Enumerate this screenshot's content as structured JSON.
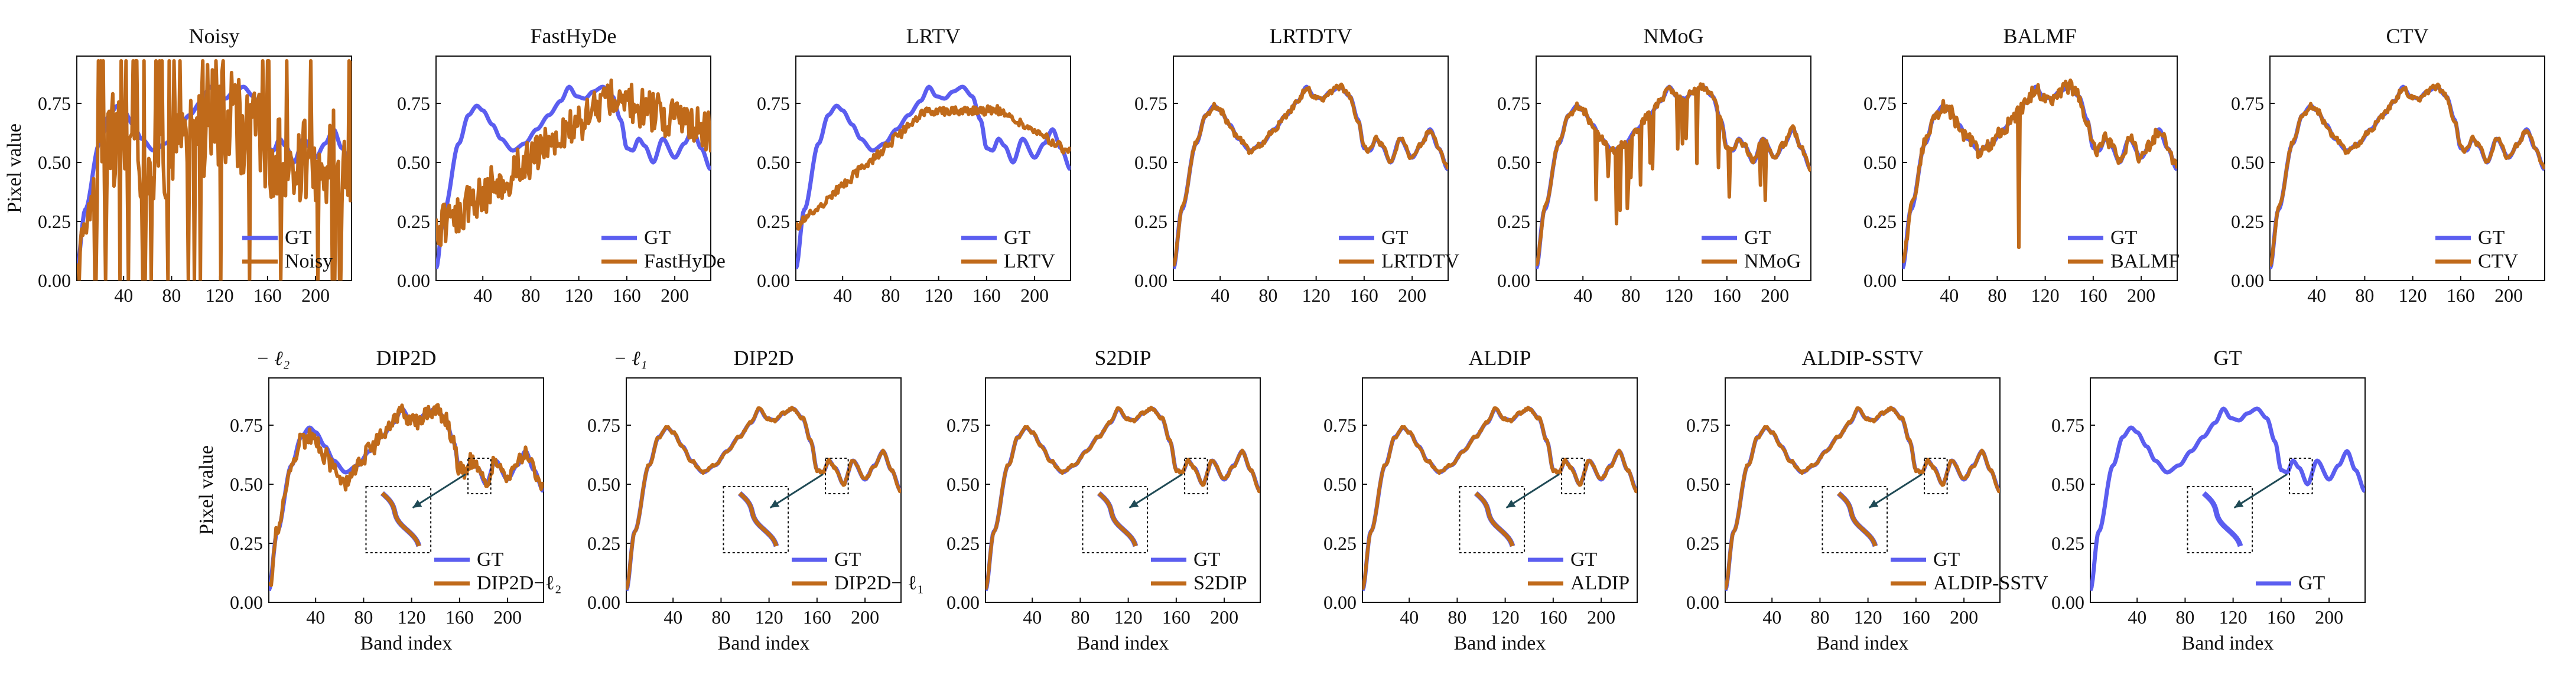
{
  "colors": {
    "gt": "#5b5ef0",
    "method": "#c06a1a",
    "arrow": "#1f4a55"
  },
  "chart_data": [
    {
      "type": "line",
      "title": "Noisy",
      "ylabel": "Pixel value",
      "xlabel": "",
      "noise": "heavy",
      "zoom": false,
      "legend": [
        "GT",
        "Noisy"
      ],
      "ylim": [
        0,
        0.95
      ],
      "xlim": [
        1,
        230
      ],
      "xticks": [
        "40",
        "80",
        "120",
        "160",
        "200"
      ],
      "yticks": [
        "0.00",
        "0.25",
        "0.50",
        "0.75"
      ]
    },
    {
      "type": "line",
      "title": "FastHyDe",
      "ylabel": "",
      "xlabel": "",
      "noise": "fasthyde",
      "zoom": false,
      "legend": [
        "GT",
        "FastHyDe"
      ],
      "ylim": [
        0,
        0.95
      ],
      "xlim": [
        1,
        230
      ],
      "xticks": [
        "40",
        "80",
        "120",
        "160",
        "200"
      ],
      "yticks": [
        "0.00",
        "0.25",
        "0.50",
        "0.75"
      ]
    },
    {
      "type": "line",
      "title": "LRTV",
      "ylabel": "",
      "xlabel": "",
      "noise": "lrtv",
      "zoom": false,
      "legend": [
        "GT",
        "LRTV"
      ],
      "ylim": [
        0,
        0.95
      ],
      "xlim": [
        1,
        230
      ],
      "xticks": [
        "40",
        "80",
        "120",
        "160",
        "200"
      ],
      "yticks": [
        "0.00",
        "0.25",
        "0.50",
        "0.75"
      ]
    },
    {
      "type": "line",
      "title": "LRTDTV",
      "ylabel": "",
      "xlabel": "",
      "noise": "light",
      "zoom": false,
      "legend": [
        "GT",
        "LRTDTV"
      ],
      "ylim": [
        0,
        0.95
      ],
      "xlim": [
        1,
        230
      ],
      "xticks": [
        "40",
        "80",
        "120",
        "160",
        "200"
      ],
      "yticks": [
        "0.00",
        "0.25",
        "0.50",
        "0.75"
      ]
    },
    {
      "type": "line",
      "title": "NMoG",
      "ylabel": "",
      "xlabel": "",
      "noise": "spiky",
      "zoom": false,
      "legend": [
        "GT",
        "NMoG"
      ],
      "ylim": [
        0,
        0.95
      ],
      "xlim": [
        1,
        230
      ],
      "xticks": [
        "40",
        "80",
        "120",
        "160",
        "200"
      ],
      "yticks": [
        "0.00",
        "0.25",
        "0.50",
        "0.75"
      ]
    },
    {
      "type": "line",
      "title": "BALMF",
      "ylabel": "",
      "xlabel": "",
      "noise": "balmf",
      "zoom": false,
      "legend": [
        "GT",
        "BALMF"
      ],
      "ylim": [
        0,
        0.95
      ],
      "xlim": [
        1,
        230
      ],
      "xticks": [
        "40",
        "80",
        "120",
        "160",
        "200"
      ],
      "yticks": [
        "0.00",
        "0.25",
        "0.50",
        "0.75"
      ]
    },
    {
      "type": "line",
      "title": "CTV",
      "ylabel": "",
      "xlabel": "",
      "noise": "light",
      "zoom": false,
      "legend": [
        "GT",
        "CTV"
      ],
      "ylim": [
        0,
        0.95
      ],
      "xlim": [
        1,
        230
      ],
      "xticks": [
        "40",
        "80",
        "120",
        "160",
        "200"
      ],
      "yticks": [
        "0.00",
        "0.25",
        "0.50",
        "0.75"
      ]
    },
    {
      "type": "line",
      "title": "DIP2D",
      "ylabel": "Pixel value",
      "xlabel": "Band index",
      "noise": "dip2",
      "zoom": true,
      "legend": [
        "GT",
        "DIP2D−ℓ₂"
      ],
      "ylim": [
        0,
        0.95
      ],
      "xlim": [
        1,
        230
      ],
      "note": "− ℓ₂",
      "xticks": [
        "40",
        "80",
        "120",
        "160",
        "200"
      ],
      "yticks": [
        "0.00",
        "0.25",
        "0.50",
        "0.75"
      ]
    },
    {
      "type": "line",
      "title": "DIP2D",
      "ylabel": "",
      "xlabel": "Band index",
      "noise": "smooth",
      "zoom": true,
      "legend": [
        "GT",
        "DIP2D− ℓ₁"
      ],
      "ylim": [
        0,
        0.95
      ],
      "xlim": [
        1,
        230
      ],
      "note": "− ℓ₁",
      "xticks": [
        "40",
        "80",
        "120",
        "160",
        "200"
      ],
      "yticks": [
        "0.00",
        "0.25",
        "0.50",
        "0.75"
      ]
    },
    {
      "type": "line",
      "title": "S2DIP",
      "ylabel": "",
      "xlabel": "Band index",
      "noise": "smooth",
      "zoom": true,
      "legend": [
        "GT",
        "S2DIP"
      ],
      "ylim": [
        0,
        0.95
      ],
      "xlim": [
        1,
        230
      ],
      "xticks": [
        "40",
        "80",
        "120",
        "160",
        "200"
      ],
      "yticks": [
        "0.00",
        "0.25",
        "0.50",
        "0.75"
      ]
    },
    {
      "type": "line",
      "title": "ALDIP",
      "ylabel": "",
      "xlabel": "Band index",
      "noise": "smooth",
      "zoom": true,
      "legend": [
        "GT",
        "ALDIP"
      ],
      "ylim": [
        0,
        0.95
      ],
      "xlim": [
        1,
        230
      ],
      "xticks": [
        "40",
        "80",
        "120",
        "160",
        "200"
      ],
      "yticks": [
        "0.00",
        "0.25",
        "0.50",
        "0.75"
      ]
    },
    {
      "type": "line",
      "title": "ALDIP-SSTV",
      "ylabel": "",
      "xlabel": "Band index",
      "noise": "smooth",
      "zoom": true,
      "legend": [
        "GT",
        "ALDIP-SSTV"
      ],
      "ylim": [
        0,
        0.95
      ],
      "xlim": [
        1,
        230
      ],
      "xticks": [
        "40",
        "80",
        "120",
        "160",
        "200"
      ],
      "yticks": [
        "0.00",
        "0.25",
        "0.50",
        "0.75"
      ]
    },
    {
      "type": "line",
      "title": "GT",
      "ylabel": "",
      "xlabel": "Band index",
      "noise": "gtonly",
      "zoom": true,
      "legend": [
        "GT"
      ],
      "ylim": [
        0,
        0.95
      ],
      "xlim": [
        1,
        230
      ],
      "xticks": [
        "40",
        "80",
        "120",
        "160",
        "200"
      ],
      "yticks": [
        "0.00",
        "0.25",
        "0.50",
        "0.75"
      ]
    }
  ]
}
